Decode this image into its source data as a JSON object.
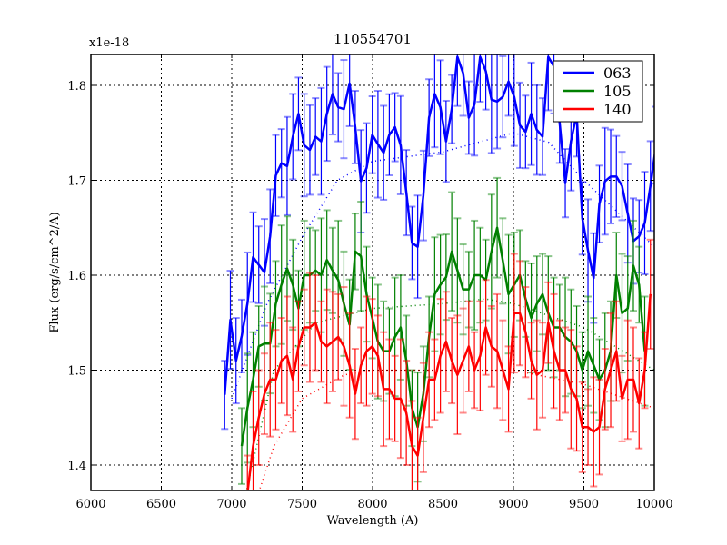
{
  "chart_data": {
    "type": "line",
    "title": "110554701",
    "xlabel": "Wavelength (A)",
    "ylabel": "Flux (erg/s/cm^2/A)",
    "y_offset_label": "x1e-18",
    "xlim": [
      6000,
      10000
    ],
    "ylim": [
      1.372,
      1.833
    ],
    "xticks": [
      6000,
      6500,
      7000,
      7500,
      8000,
      8500,
      9000,
      9500,
      10000
    ],
    "yticks": [
      1.4,
      1.5,
      1.6,
      1.7,
      1.8
    ],
    "ytick_labels": [
      "1.4",
      "1.5",
      "1.6",
      "1.7",
      "1.8"
    ],
    "grid": true,
    "legend_position": "upper right",
    "x_start": 6950,
    "x_step": 40.3,
    "series": [
      {
        "name": "063",
        "color": "#0000ff",
        "start_index": 0,
        "values": [
          1.474,
          1.553,
          1.51,
          1.536,
          1.57,
          1.619,
          1.611,
          1.603,
          1.641,
          1.705,
          1.718,
          1.715,
          1.746,
          1.77,
          1.737,
          1.732,
          1.746,
          1.741,
          1.77,
          1.791,
          1.777,
          1.775,
          1.802,
          1.756,
          1.699,
          1.713,
          1.748,
          1.738,
          1.729,
          1.748,
          1.756,
          1.737,
          1.687,
          1.634,
          1.63,
          1.684,
          1.766,
          1.791,
          1.777,
          1.741,
          1.775,
          1.83,
          1.813,
          1.766,
          1.78,
          1.83,
          1.815,
          1.785,
          1.783,
          1.788,
          1.804,
          1.788,
          1.758,
          1.751,
          1.77,
          1.753,
          1.746,
          1.83,
          1.82,
          1.761,
          1.697,
          1.741,
          1.77,
          1.66,
          1.626,
          1.597,
          1.675,
          1.699,
          1.704,
          1.704,
          1.694,
          1.665,
          1.636,
          1.641,
          1.655,
          1.694,
          1.737
        ],
        "err": 0.045,
        "model": [
          [
            7000,
            1.47
          ],
          [
            7250,
            1.57
          ],
          [
            7500,
            1.64
          ],
          [
            7750,
            1.7
          ],
          [
            8000,
            1.72
          ],
          [
            8500,
            1.73
          ],
          [
            9000,
            1.75
          ],
          [
            9250,
            1.74
          ],
          [
            9500,
            1.7
          ],
          [
            10000,
            1.63
          ]
        ]
      },
      {
        "name": "105",
        "color": "#008000",
        "start_index": 3,
        "values": [
          1.42,
          1.46,
          1.49,
          1.525,
          1.528,
          1.528,
          1.57,
          1.59,
          1.607,
          1.59,
          1.565,
          1.6,
          1.6,
          1.605,
          1.6,
          1.616,
          1.605,
          1.595,
          1.57,
          1.548,
          1.625,
          1.62,
          1.58,
          1.555,
          1.53,
          1.52,
          1.52,
          1.535,
          1.545,
          1.51,
          1.46,
          1.44,
          1.475,
          1.535,
          1.58,
          1.59,
          1.598,
          1.625,
          1.605,
          1.585,
          1.585,
          1.6,
          1.6,
          1.595,
          1.625,
          1.65,
          1.615,
          1.58,
          1.59,
          1.6,
          1.575,
          1.555,
          1.57,
          1.58,
          1.56,
          1.545,
          1.545,
          1.535,
          1.53,
          1.52,
          1.5,
          1.52,
          1.505,
          1.49,
          1.5,
          1.52,
          1.6,
          1.56,
          1.565,
          1.61,
          1.59,
          1.52
        ],
        "err": 0.05,
        "model": [
          [
            7100,
            1.37
          ],
          [
            7300,
            1.5
          ],
          [
            7600,
            1.55
          ],
          [
            8000,
            1.565
          ],
          [
            8500,
            1.57
          ],
          [
            8800,
            1.575
          ],
          [
            9000,
            1.57
          ],
          [
            9500,
            1.545
          ],
          [
            10000,
            1.5
          ]
        ]
      },
      {
        "name": "140",
        "color": "#ff0000",
        "start_index": 4,
        "values": [
          1.37,
          1.42,
          1.45,
          1.475,
          1.49,
          1.49,
          1.51,
          1.515,
          1.49,
          1.525,
          1.545,
          1.545,
          1.55,
          1.53,
          1.525,
          1.53,
          1.535,
          1.525,
          1.505,
          1.475,
          1.505,
          1.52,
          1.525,
          1.515,
          1.48,
          1.48,
          1.47,
          1.47,
          1.455,
          1.42,
          1.41,
          1.45,
          1.49,
          1.49,
          1.515,
          1.53,
          1.51,
          1.495,
          1.51,
          1.525,
          1.5,
          1.515,
          1.545,
          1.525,
          1.52,
          1.5,
          1.48,
          1.56,
          1.56,
          1.54,
          1.51,
          1.495,
          1.5,
          1.55,
          1.52,
          1.5,
          1.5,
          1.48,
          1.47,
          1.44,
          1.44,
          1.435,
          1.44,
          1.48,
          1.5,
          1.52,
          1.47,
          1.49,
          1.49,
          1.465,
          1.5,
          1.58
        ],
        "err": 0.05,
        "model": [
          [
            7100,
            1.33
          ],
          [
            7300,
            1.42
          ],
          [
            7500,
            1.47
          ],
          [
            7800,
            1.495
          ],
          [
            8000,
            1.5
          ],
          [
            8500,
            1.5
          ],
          [
            9000,
            1.5
          ],
          [
            9500,
            1.485
          ],
          [
            10000,
            1.46
          ]
        ]
      }
    ]
  }
}
